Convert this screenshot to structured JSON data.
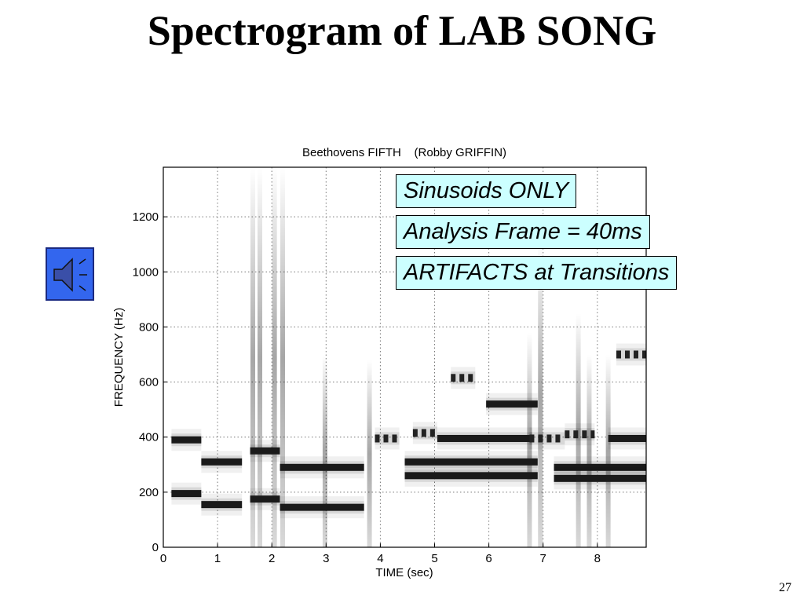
{
  "slide": {
    "title": "Spectrogram of LAB SONG",
    "page_number": "27"
  },
  "audio_button": {
    "icon": "speaker-icon",
    "color": "#3366ee"
  },
  "callouts": [
    "Sinusoids ONLY",
    "Analysis Frame = 40ms",
    "ARTIFACTS at Transitions"
  ],
  "callout_color": "#ccffff",
  "chart_data": {
    "type": "heatmap",
    "title": "Beethovens FIFTH    (Robby GRIFFIN)",
    "xlabel": "TIME (sec)",
    "ylabel": "FREQUENCY (Hz)",
    "xlim": [
      0,
      8.9
    ],
    "ylim": [
      0,
      1380
    ],
    "xticks": [
      0,
      1,
      2,
      3,
      4,
      5,
      6,
      7,
      8
    ],
    "yticks": [
      0,
      200,
      400,
      600,
      800,
      1000,
      1200
    ],
    "grid": true,
    "colormap": "gray (dark = high energy)",
    "notes": [
      {
        "t0": 0.15,
        "t1": 0.7,
        "f": 390
      },
      {
        "t0": 0.15,
        "t1": 0.7,
        "f": 195
      },
      {
        "t0": 0.7,
        "t1": 1.45,
        "f": 310
      },
      {
        "t0": 0.7,
        "t1": 1.45,
        "f": 155
      },
      {
        "t0": 1.6,
        "t1": 2.15,
        "f": 350
      },
      {
        "t0": 1.6,
        "t1": 2.15,
        "f": 175
      },
      {
        "t0": 2.15,
        "t1": 3.7,
        "f": 290
      },
      {
        "t0": 2.15,
        "t1": 3.7,
        "f": 145
      },
      {
        "t0": 3.9,
        "t1": 4.35,
        "f": 395,
        "dashed": true
      },
      {
        "t0": 4.6,
        "t1": 5.05,
        "f": 415,
        "dashed": true
      },
      {
        "t0": 5.05,
        "t1": 6.8,
        "f": 395
      },
      {
        "t0": 4.45,
        "t1": 6.9,
        "f": 310
      },
      {
        "t0": 4.45,
        "t1": 6.9,
        "f": 260
      },
      {
        "t0": 5.3,
        "t1": 5.75,
        "f": 615,
        "dashed": true
      },
      {
        "t0": 5.95,
        "t1": 6.9,
        "f": 520
      },
      {
        "t0": 6.75,
        "t1": 7.4,
        "f": 395,
        "dashed": true
      },
      {
        "t0": 7.4,
        "t1": 7.95,
        "f": 410,
        "dashed": true
      },
      {
        "t0": 7.2,
        "t1": 8.9,
        "f": 290
      },
      {
        "t0": 7.2,
        "t1": 8.9,
        "f": 250
      },
      {
        "t0": 8.2,
        "t1": 8.9,
        "f": 395
      },
      {
        "t0": 8.35,
        "t1": 8.9,
        "f": 700,
        "dashed": true
      }
    ],
    "transients": [
      {
        "t": 1.65,
        "fmax": 1380
      },
      {
        "t": 1.78,
        "fmax": 1380
      },
      {
        "t": 2.05,
        "fmax": 1380
      },
      {
        "t": 2.2,
        "fmax": 1380
      },
      {
        "t": 2.98,
        "fmax": 700
      },
      {
        "t": 3.8,
        "fmax": 680
      },
      {
        "t": 6.75,
        "fmax": 780
      },
      {
        "t": 6.95,
        "fmax": 1100
      },
      {
        "t": 7.65,
        "fmax": 850
      },
      {
        "t": 7.85,
        "fmax": 700
      },
      {
        "t": 8.2,
        "fmax": 700
      }
    ]
  }
}
